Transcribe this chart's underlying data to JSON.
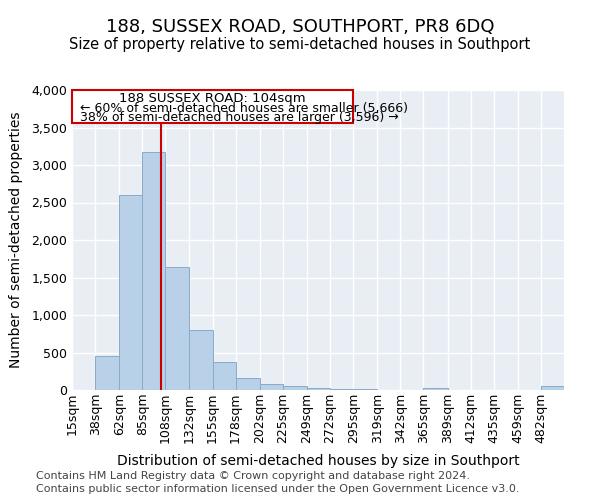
{
  "title": "188, SUSSEX ROAD, SOUTHPORT, PR8 6DQ",
  "subtitle": "Size of property relative to semi-detached houses in Southport",
  "xlabel": "Distribution of semi-detached houses by size in Southport",
  "ylabel": "Number of semi-detached properties",
  "footer1": "Contains HM Land Registry data © Crown copyright and database right 2024.",
  "footer2": "Contains public sector information licensed under the Open Government Licence v3.0.",
  "annotation_line1": "188 SUSSEX ROAD: 104sqm",
  "annotation_line2": "← 60% of semi-detached houses are smaller (5,666)",
  "annotation_line3": "38% of semi-detached houses are larger (3,596) →",
  "property_size": 104,
  "bar_edges": [
    15,
    38,
    62,
    85,
    108,
    132,
    155,
    178,
    202,
    225,
    249,
    272,
    295,
    319,
    342,
    365,
    389,
    412,
    435,
    459,
    482,
    505
  ],
  "bar_heights": [
    5,
    460,
    2600,
    3170,
    1640,
    800,
    380,
    160,
    80,
    60,
    30,
    10,
    15,
    0,
    0,
    25,
    0,
    0,
    0,
    0,
    60
  ],
  "bar_color": "#b8d0e8",
  "bar_edge_color": "#8aaac8",
  "red_line_x": 104,
  "red_box_color": "#cc0000",
  "background_color": "#ffffff",
  "plot_bg_color": "#e8eef4",
  "ylim": [
    0,
    4000
  ],
  "yticks": [
    0,
    500,
    1000,
    1500,
    2000,
    2500,
    3000,
    3500,
    4000
  ],
  "grid_color": "#ffffff",
  "title_fontsize": 13,
  "subtitle_fontsize": 10.5,
  "axis_label_fontsize": 10,
  "tick_fontsize": 9,
  "footer_fontsize": 8,
  "annotation_fontsize": 9.5
}
